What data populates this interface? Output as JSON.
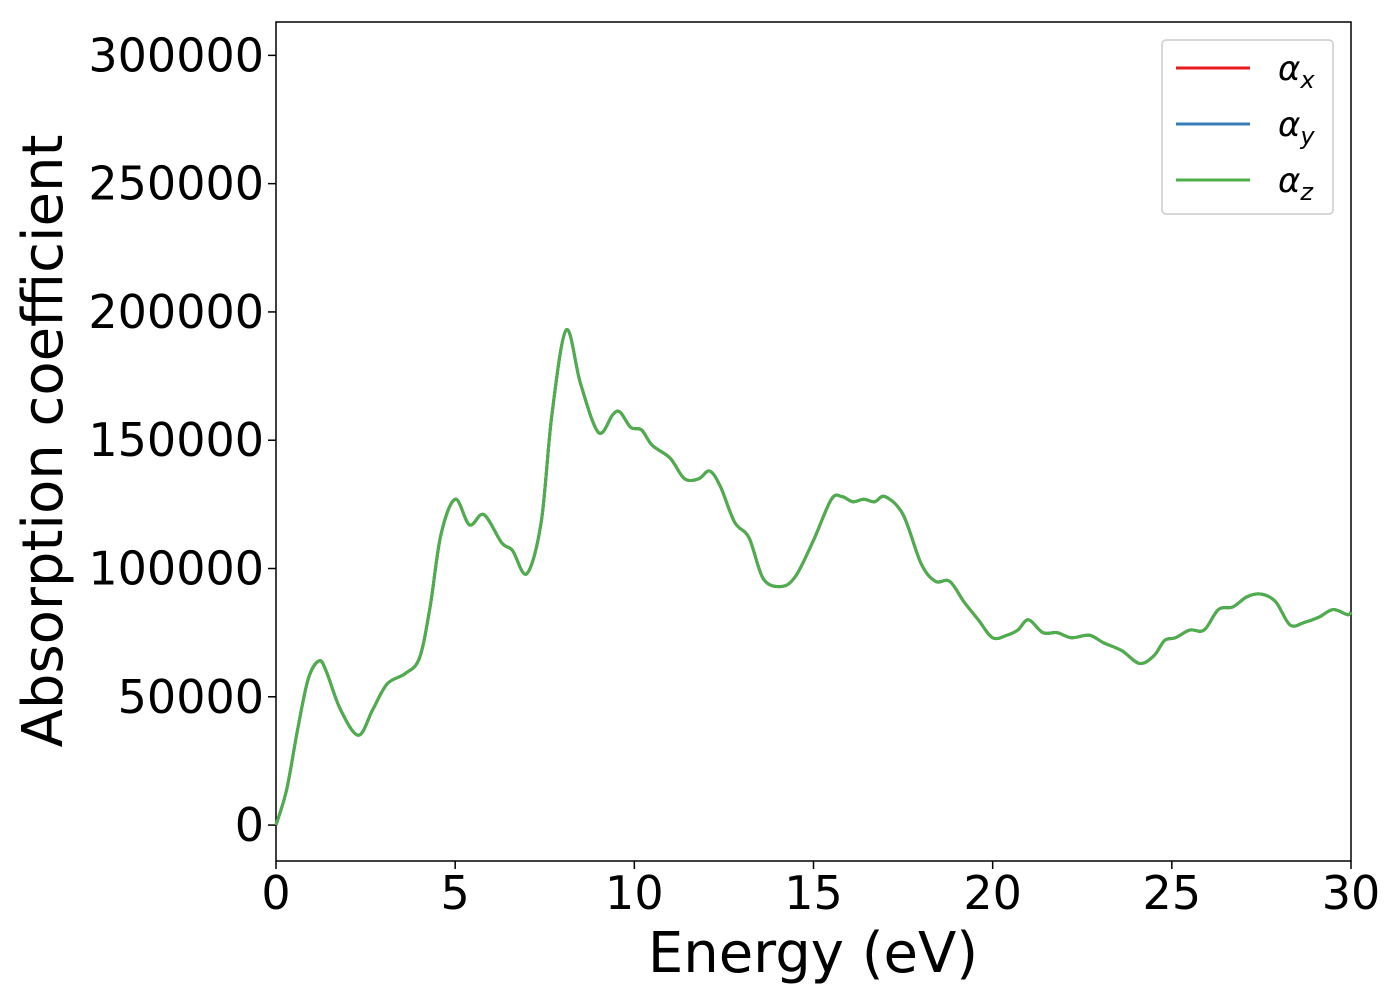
{
  "chart_data": {
    "type": "line",
    "title": "",
    "xlabel": "Energy (eV)",
    "ylabel": "Absorption coefficient",
    "xlim": [
      0,
      30
    ],
    "ylim": [
      -14000,
      313000
    ],
    "x_ticks": [
      0,
      5,
      10,
      15,
      20,
      25,
      30
    ],
    "y_ticks": [
      0,
      50000,
      100000,
      150000,
      200000,
      250000,
      300000
    ],
    "grid": false,
    "legend_position": "top-right",
    "x": [
      0,
      0.3,
      0.6,
      0.9,
      1.2,
      1.4,
      1.8,
      2.3,
      2.7,
      3.1,
      3.6,
      4.0,
      4.3,
      4.6,
      5.0,
      5.4,
      5.8,
      6.3,
      6.6,
      7.0,
      7.4,
      7.7,
      8.1,
      8.5,
      9.0,
      9.4,
      9.6,
      9.9,
      10.2,
      10.5,
      11.0,
      11.4,
      11.8,
      12.1,
      12.4,
      12.8,
      13.2,
      13.6,
      14.1,
      14.5,
      15.0,
      15.5,
      15.8,
      16.1,
      16.4,
      16.7,
      17.0,
      17.5,
      18.0,
      18.4,
      18.8,
      19.2,
      19.6,
      20.0,
      20.4,
      20.7,
      21.0,
      21.4,
      21.8,
      22.2,
      22.7,
      23.1,
      23.6,
      24.1,
      24.5,
      24.8,
      25.1,
      25.5,
      25.9,
      26.3,
      26.7,
      27.1,
      27.5,
      27.9,
      28.3,
      28.7,
      29.1,
      29.5,
      29.9,
      30.0
    ],
    "series": [
      {
        "name": "α_x",
        "color": "#e41a1c"
      },
      {
        "name": "α_y",
        "color": "#377eb8"
      },
      {
        "name": "α_z",
        "color": "#4daf4a"
      }
    ],
    "y_shared": [
      0,
      14000,
      37000,
      57000,
      64000,
      60000,
      45000,
      35000,
      45000,
      55000,
      59000,
      65000,
      85000,
      113000,
      127000,
      117000,
      121000,
      110000,
      107000,
      98000,
      118000,
      160000,
      193000,
      172000,
      153000,
      160000,
      161000,
      155000,
      154000,
      148000,
      143000,
      135000,
      135000,
      138000,
      132000,
      118000,
      112000,
      96000,
      93000,
      97000,
      111000,
      127000,
      128000,
      126000,
      127000,
      126000,
      128000,
      121000,
      102000,
      95000,
      95000,
      87000,
      80000,
      73000,
      74000,
      76000,
      80000,
      75000,
      75000,
      73000,
      74000,
      71000,
      68000,
      63000,
      66000,
      72000,
      73000,
      76000,
      76000,
      84000,
      85000,
      89000,
      90000,
      87000,
      78000,
      79000,
      81000,
      84000,
      82000,
      83000
    ]
  },
  "legend": {
    "items": [
      {
        "symbol": "α",
        "sub": "x",
        "color": "#e41a1c"
      },
      {
        "symbol": "α",
        "sub": "y",
        "color": "#377eb8"
      },
      {
        "symbol": "α",
        "sub": "z",
        "color": "#4daf4a"
      }
    ]
  },
  "axes": {
    "x_tick_labels": [
      "0",
      "5",
      "10",
      "15",
      "20",
      "25",
      "30"
    ],
    "y_tick_labels": [
      "0",
      "50000",
      "100000",
      "150000",
      "200000",
      "250000",
      "300000"
    ]
  }
}
